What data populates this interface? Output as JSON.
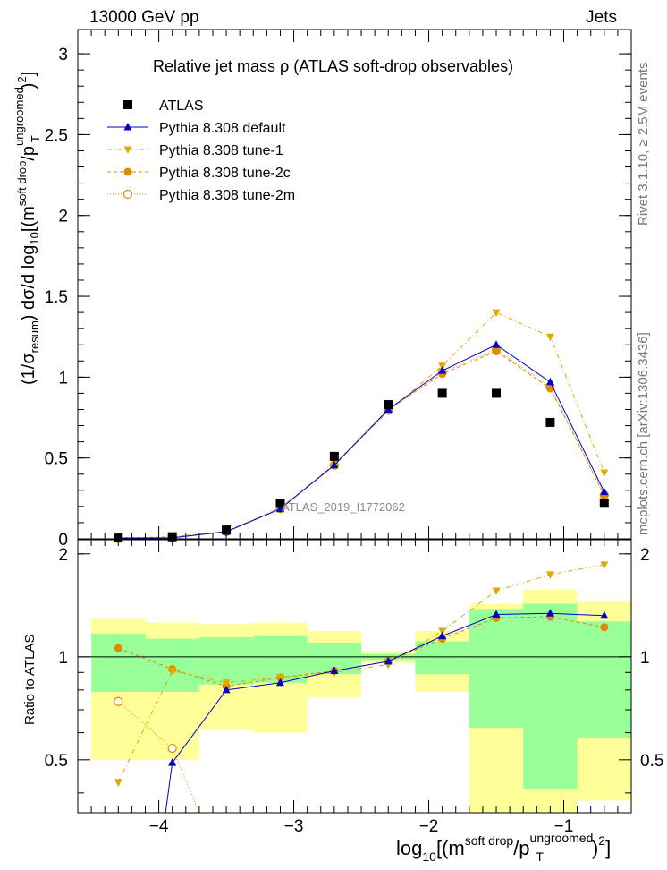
{
  "header": {
    "left": "13000 GeV pp",
    "right": "Jets"
  },
  "side_labels": {
    "rivet": "Rivet 3.1.10, ≥ 2.5M events",
    "mcplots": "mcplots.cern.ch [arXiv:1306.3436]"
  },
  "plot_title": "Relative jet mass  ρ (ATLAS soft-drop observables)",
  "analysis_tag": "ATLAS_2019_I1772062",
  "colors": {
    "data": "#000000",
    "default": "#0000cc",
    "tune": "#e0a800",
    "tune2": "#e08a00",
    "band_inner": "#99ff99",
    "band_outer": "#ffff99"
  },
  "chart_data": [
    {
      "type": "scatter",
      "role": "main",
      "ylabel_parts": {
        "a": "(1/σ",
        "a_sub": "resum",
        "b": ") dσ/d log",
        "b_sub": "10",
        "c": "[(m",
        "c_sup": "soft drop",
        "d": "/p",
        "d_sup": "ungroomed",
        "d_sub": "T",
        "e": ")",
        "e_sup": "2",
        "f": "]"
      },
      "xlim": [
        -4.6,
        -0.5
      ],
      "ylim": [
        0,
        3.15
      ],
      "yticks": [
        0,
        0.5,
        1,
        1.5,
        2,
        2.5,
        3
      ],
      "ytick_labels": [
        "0",
        "0.5",
        "1",
        "1.5",
        "2",
        "2.5",
        "3"
      ],
      "x": [
        -4.3,
        -3.9,
        -3.5,
        -3.1,
        -2.7,
        -2.3,
        -1.9,
        -1.5,
        -1.1,
        -0.7
      ],
      "series": [
        {
          "name": "ATLAS",
          "style": "square",
          "values": [
            0.005,
            0.013,
            0.055,
            0.22,
            0.51,
            0.83,
            0.9,
            0.9,
            0.72,
            0.22
          ]
        },
        {
          "name": "Pythia 8.308 default",
          "style": "triangle-up-solid",
          "values": [
            0.005,
            0.006,
            0.044,
            0.185,
            0.455,
            0.8,
            1.04,
            1.2,
            0.97,
            0.29
          ]
        },
        {
          "name": "Pythia 8.308 tune-1",
          "style": "triangle-down-dashdot",
          "values": [
            0.002,
            0.01,
            0.046,
            0.19,
            0.455,
            0.79,
            1.07,
            1.4,
            1.25,
            0.41
          ]
        },
        {
          "name": "Pythia 8.308 tune-2c",
          "style": "circle-dashed",
          "values": [
            0.006,
            0.012,
            0.045,
            0.19,
            0.46,
            0.8,
            1.02,
            1.16,
            0.93,
            0.27
          ]
        },
        {
          "name": "Pythia 8.308 tune-2m",
          "style": "open-circle-dotted",
          "values": [
            0.004,
            0.007,
            0.044,
            0.186,
            0.455,
            0.795,
            1.03,
            1.17,
            0.94,
            0.27
          ]
        }
      ]
    },
    {
      "type": "scatter",
      "role": "ratio",
      "ylabel": "Ratio to ATLAS",
      "xlabel_parts": {
        "a": "log",
        "a_sub": "10",
        "b": "[(m",
        "b_sup": "soft drop",
        "c": "/p",
        "c_sup": "ungroomed",
        "c_sub": "T",
        "d": ")",
        "d_sup": "2",
        "e": "]"
      },
      "xlim": [
        -4.6,
        -0.5
      ],
      "ylim": [
        0.35,
        2.2
      ],
      "xticks": [
        -4,
        -3,
        -2,
        -1
      ],
      "xtick_labels": [
        "−4",
        "−3",
        "−2",
        "−1"
      ],
      "yticks": [
        0.5,
        1,
        2
      ],
      "ytick_labels": [
        "0.5",
        "1",
        "2"
      ],
      "bins": [
        {
          "lo": -4.5,
          "hi": -4.1,
          "inner": [
            0.79,
            1.17
          ],
          "outer": [
            0.5,
            1.29
          ]
        },
        {
          "lo": -4.1,
          "hi": -3.7,
          "inner": [
            0.79,
            1.13
          ],
          "outer": [
            0.5,
            1.26
          ]
        },
        {
          "lo": -3.7,
          "hi": -3.3,
          "inner": [
            0.83,
            1.14
          ],
          "outer": [
            0.61,
            1.25
          ]
        },
        {
          "lo": -3.3,
          "hi": -2.9,
          "inner": [
            0.84,
            1.15
          ],
          "outer": [
            0.6,
            1.26
          ]
        },
        {
          "lo": -2.9,
          "hi": -2.5,
          "inner": [
            0.89,
            1.1
          ],
          "outer": [
            0.76,
            1.19
          ]
        },
        {
          "lo": -2.5,
          "hi": -2.1,
          "inner": [
            0.98,
            1.02
          ],
          "outer": [
            0.96,
            1.04
          ]
        },
        {
          "lo": -2.1,
          "hi": -1.7,
          "inner": [
            0.89,
            1.11
          ],
          "outer": [
            0.79,
            1.19
          ]
        },
        {
          "lo": -1.7,
          "hi": -1.3,
          "inner": [
            0.62,
            1.38
          ],
          "outer": [
            0.18,
            1.43
          ]
        },
        {
          "lo": -1.3,
          "hi": -0.9,
          "inner": [
            0.41,
            1.43
          ],
          "outer": [
            0.27,
            1.57
          ]
        },
        {
          "lo": -0.9,
          "hi": -0.5,
          "inner": [
            0.58,
            1.27
          ],
          "outer": [
            0.38,
            1.46
          ]
        }
      ],
      "series": [
        {
          "name": "Pythia 8.308 default",
          "x": [
            -3.9,
            -3.5,
            -3.1,
            -2.7,
            -2.3,
            -1.9,
            -1.5,
            -1.1,
            -0.7
          ],
          "values": [
            0.49,
            0.8,
            0.84,
            0.91,
            0.97,
            1.15,
            1.33,
            1.34,
            1.32
          ]
        },
        {
          "name": "Pythia 8.308 tune-1",
          "x": [
            -4.3,
            -3.9,
            -3.5,
            -3.1,
            -2.7,
            -2.3,
            -1.9,
            -1.5,
            -1.1,
            -0.7
          ],
          "values": [
            0.43,
            0.91,
            0.84,
            0.87,
            0.9,
            0.95,
            1.19,
            1.56,
            1.74,
            1.86
          ]
        },
        {
          "name": "Pythia 8.308 tune-2c",
          "x": [
            -4.3,
            -3.9,
            -3.5,
            -3.1,
            -2.7,
            -2.3,
            -1.9,
            -1.5,
            -1.1,
            -0.7
          ],
          "values": [
            1.06,
            0.92,
            0.82,
            0.87,
            0.91,
            0.97,
            1.13,
            1.3,
            1.31,
            1.22
          ]
        },
        {
          "name": "Pythia 8.308 tune-2m",
          "x": [
            -4.3,
            -3.9
          ],
          "values": [
            0.74,
            0.54
          ]
        }
      ]
    }
  ]
}
